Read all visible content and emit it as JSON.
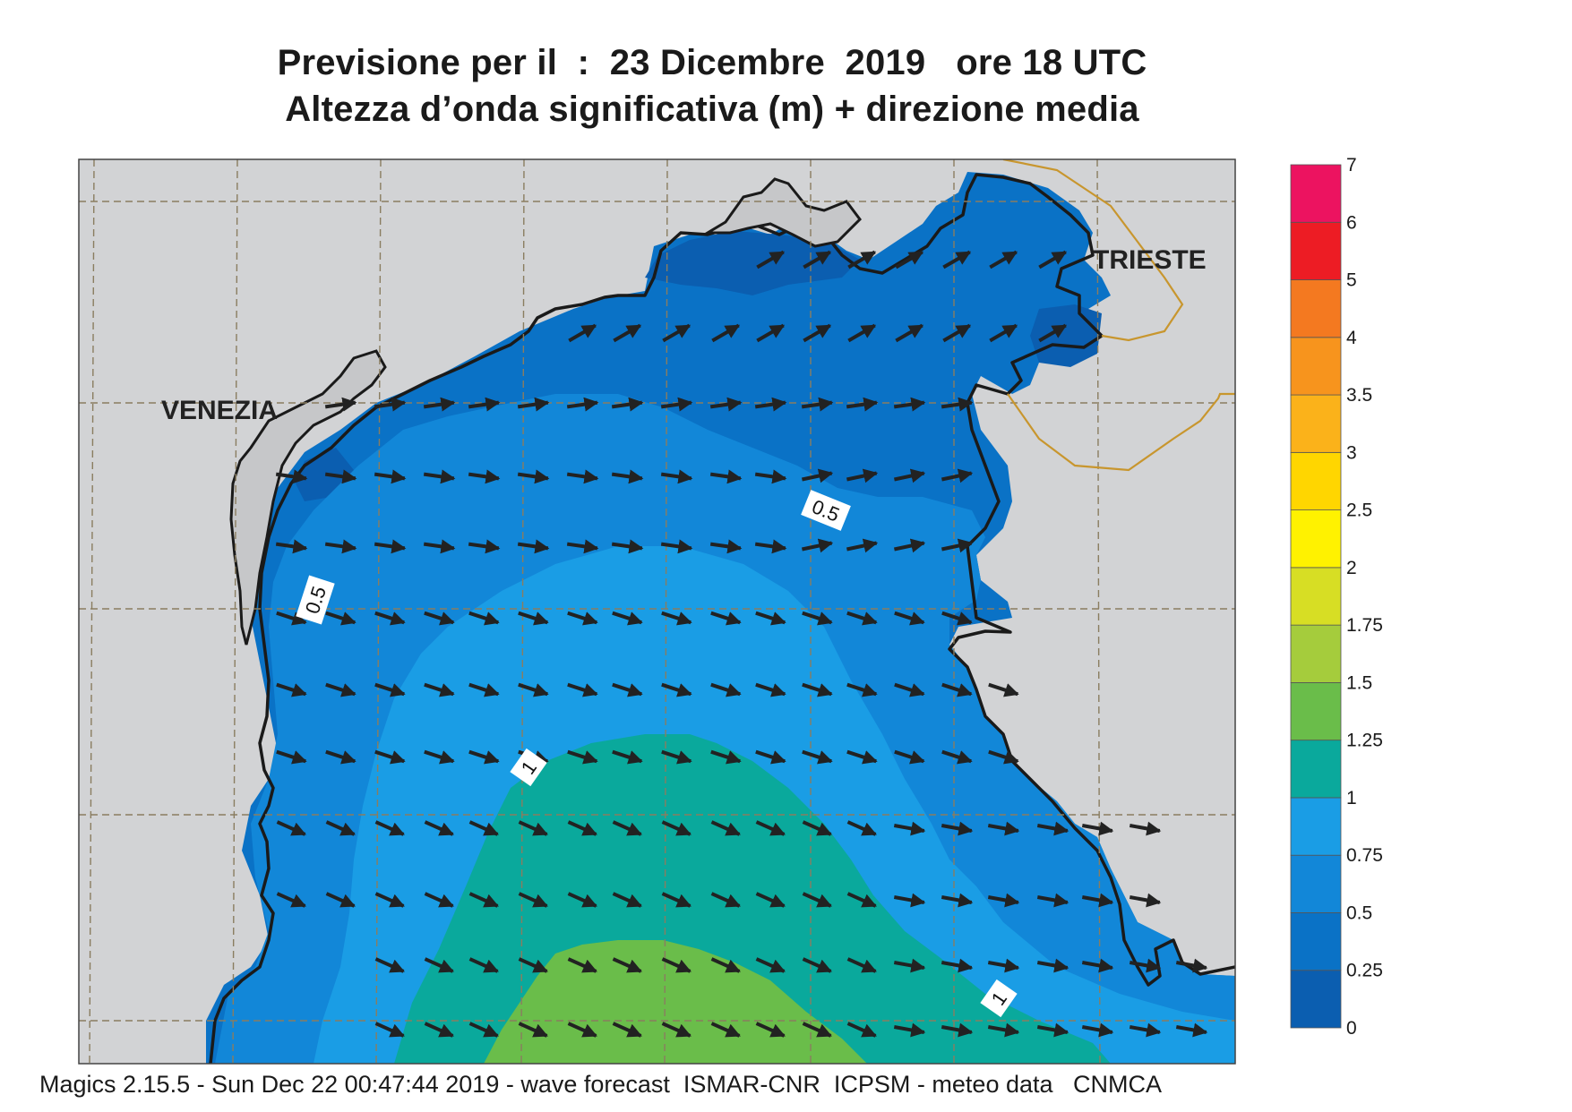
{
  "header": {
    "title_line1": "Previsione per il  :  23 Dicembre  2019   ore 18 UTC",
    "title_line2": "Altezza d’onda significativa (m) + direzione media"
  },
  "footer": {
    "credits": "Magics 2.15.5 - Sun Dec 22 00:47:44 2019 - wave forecast  ISMAR-CNR  ICPSM - meteo data   CNMCA"
  },
  "map": {
    "cities": [
      "VENEZIA",
      "TRIESTE"
    ],
    "contour_labels": [
      "0.5",
      "0.5",
      "1",
      "1"
    ],
    "land_color": "#d2d3d5",
    "coast_color": "#1a1a1a",
    "border_color": "#c8962e",
    "arrow_color": "#222222",
    "wave_direction": "east-southeast"
  },
  "colorbar": {
    "levels": [
      "0",
      "0.25",
      "0.5",
      "0.75",
      "1",
      "1.25",
      "1.5",
      "1.75",
      "2",
      "2.5",
      "3",
      "3.5",
      "4",
      "5",
      "6",
      "7"
    ],
    "colors": [
      "#0b5eb0",
      "#0a72c6",
      "#1287d8",
      "#1a9de5",
      "#0aa99c",
      "#6abd4a",
      "#a5cc3c",
      "#d7de24",
      "#fff200",
      "#ffd600",
      "#fbb21a",
      "#f7941d",
      "#f47920",
      "#ed1c24",
      "#ec1360"
    ]
  }
}
